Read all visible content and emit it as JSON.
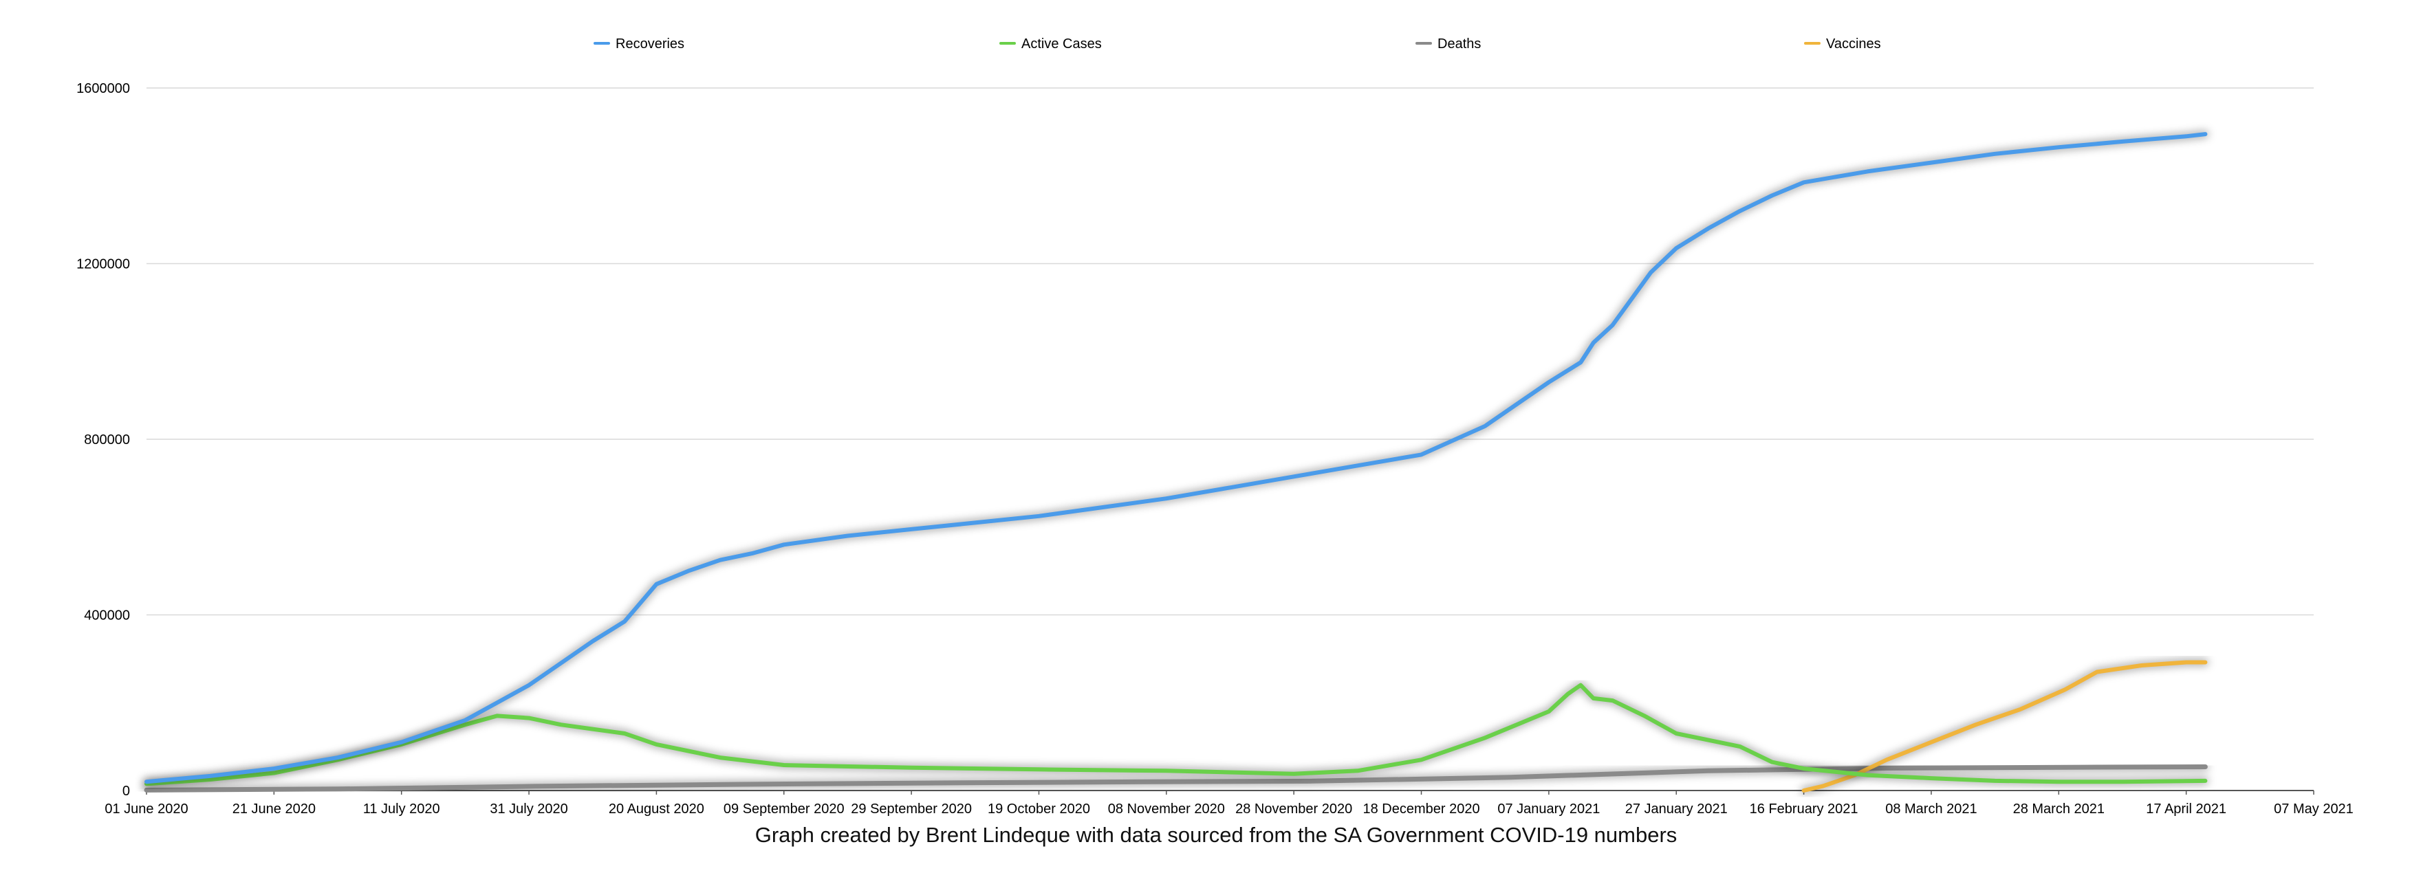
{
  "caption": "Graph created by Brent Lindeque with data sourced from the SA Government COVID-19 numbers",
  "chart_data": {
    "type": "line",
    "title": "",
    "xlabel": "",
    "ylabel": "",
    "x_tick_labels": [
      "01 June 2020",
      "21 June 2020",
      "11 July 2020",
      "31 July 2020",
      "20 August 2020",
      "09 September 2020",
      "29 September 2020",
      "19 October 2020",
      "08 November 2020",
      "28 November 2020",
      "18 December 2020",
      "07 January 2021",
      "27 January 2021",
      "16 February 2021",
      "08 March 2021",
      "28 March 2021",
      "17 April 2021",
      "07 May 2021"
    ],
    "y_ticks": [
      0,
      400000,
      800000,
      1200000,
      1600000
    ],
    "ylim": [
      0,
      1600000
    ],
    "xlim": [
      "2020-06-01",
      "2021-05-07"
    ],
    "grid": "horizontal",
    "legend": "top",
    "series": [
      {
        "name": "Recoveries",
        "color": "#4a9bea",
        "points": [
          [
            "2020-06-01",
            20000
          ],
          [
            "2020-06-11",
            33000
          ],
          [
            "2020-06-21",
            50000
          ],
          [
            "2020-07-01",
            75000
          ],
          [
            "2020-07-11",
            110000
          ],
          [
            "2020-07-21",
            160000
          ],
          [
            "2020-07-31",
            240000
          ],
          [
            "2020-08-05",
            290000
          ],
          [
            "2020-08-10",
            340000
          ],
          [
            "2020-08-15",
            385000
          ],
          [
            "2020-08-20",
            470000
          ],
          [
            "2020-08-25",
            500000
          ],
          [
            "2020-08-30",
            525000
          ],
          [
            "2020-09-04",
            540000
          ],
          [
            "2020-09-09",
            560000
          ],
          [
            "2020-09-19",
            580000
          ],
          [
            "2020-09-29",
            595000
          ],
          [
            "2020-10-09",
            610000
          ],
          [
            "2020-10-19",
            625000
          ],
          [
            "2020-10-29",
            645000
          ],
          [
            "2020-11-08",
            665000
          ],
          [
            "2020-11-18",
            690000
          ],
          [
            "2020-11-28",
            715000
          ],
          [
            "2020-12-08",
            740000
          ],
          [
            "2020-12-18",
            765000
          ],
          [
            "2020-12-28",
            830000
          ],
          [
            "2021-01-02",
            880000
          ],
          [
            "2021-01-07",
            930000
          ],
          [
            "2021-01-12",
            975000
          ],
          [
            "2021-01-14",
            1020000
          ],
          [
            "2021-01-17",
            1060000
          ],
          [
            "2021-01-20",
            1120000
          ],
          [
            "2021-01-23",
            1180000
          ],
          [
            "2021-01-27",
            1235000
          ],
          [
            "2021-02-01",
            1280000
          ],
          [
            "2021-02-06",
            1320000
          ],
          [
            "2021-02-11",
            1355000
          ],
          [
            "2021-02-16",
            1385000
          ],
          [
            "2021-02-26",
            1410000
          ],
          [
            "2021-03-08",
            1430000
          ],
          [
            "2021-03-18",
            1450000
          ],
          [
            "2021-03-28",
            1465000
          ],
          [
            "2021-04-07",
            1478000
          ],
          [
            "2021-04-17",
            1490000
          ],
          [
            "2021-04-20",
            1495000
          ]
        ]
      },
      {
        "name": "Active Cases",
        "color": "#6ad04a",
        "points": [
          [
            "2020-06-01",
            15000
          ],
          [
            "2020-06-11",
            25000
          ],
          [
            "2020-06-21",
            40000
          ],
          [
            "2020-07-01",
            70000
          ],
          [
            "2020-07-11",
            105000
          ],
          [
            "2020-07-21",
            150000
          ],
          [
            "2020-07-26",
            170000
          ],
          [
            "2020-07-31",
            165000
          ],
          [
            "2020-08-05",
            150000
          ],
          [
            "2020-08-10",
            140000
          ],
          [
            "2020-08-15",
            130000
          ],
          [
            "2020-08-20",
            105000
          ],
          [
            "2020-08-25",
            90000
          ],
          [
            "2020-08-30",
            75000
          ],
          [
            "2020-09-09",
            58000
          ],
          [
            "2020-09-29",
            52000
          ],
          [
            "2020-10-19",
            48000
          ],
          [
            "2020-11-08",
            45000
          ],
          [
            "2020-11-28",
            38000
          ],
          [
            "2020-12-08",
            45000
          ],
          [
            "2020-12-18",
            70000
          ],
          [
            "2020-12-28",
            120000
          ],
          [
            "2021-01-02",
            150000
          ],
          [
            "2021-01-07",
            180000
          ],
          [
            "2021-01-10",
            220000
          ],
          [
            "2021-01-12",
            240000
          ],
          [
            "2021-01-14",
            210000
          ],
          [
            "2021-01-17",
            205000
          ],
          [
            "2021-01-22",
            170000
          ],
          [
            "2021-01-27",
            130000
          ],
          [
            "2021-02-06",
            100000
          ],
          [
            "2021-02-11",
            65000
          ],
          [
            "2021-02-16",
            50000
          ],
          [
            "2021-02-26",
            35000
          ],
          [
            "2021-03-08",
            28000
          ],
          [
            "2021-03-18",
            22000
          ],
          [
            "2021-03-28",
            20000
          ],
          [
            "2021-04-07",
            20000
          ],
          [
            "2021-04-20",
            22000
          ]
        ]
      },
      {
        "name": "Deaths",
        "color": "#8a8a8a",
        "points": [
          [
            "2020-06-01",
            1000
          ],
          [
            "2020-07-01",
            3500
          ],
          [
            "2020-08-01",
            9500
          ],
          [
            "2020-09-01",
            14000
          ],
          [
            "2020-10-01",
            17000
          ],
          [
            "2020-11-01",
            19500
          ],
          [
            "2020-12-01",
            21500
          ],
          [
            "2021-01-01",
            30000
          ],
          [
            "2021-02-01",
            45000
          ],
          [
            "2021-03-01",
            51000
          ],
          [
            "2021-04-01",
            53000
          ],
          [
            "2021-04-20",
            54000
          ]
        ]
      },
      {
        "name": "Vaccines",
        "color": "#f0b43c",
        "points": [
          [
            "2021-02-16",
            0
          ],
          [
            "2021-02-19",
            10000
          ],
          [
            "2021-02-24",
            35000
          ],
          [
            "2021-03-01",
            70000
          ],
          [
            "2021-03-08",
            110000
          ],
          [
            "2021-03-15",
            150000
          ],
          [
            "2021-03-22",
            185000
          ],
          [
            "2021-03-29",
            230000
          ],
          [
            "2021-04-03",
            270000
          ],
          [
            "2021-04-10",
            285000
          ],
          [
            "2021-04-17",
            292000
          ],
          [
            "2021-04-20",
            292000
          ]
        ]
      }
    ]
  }
}
